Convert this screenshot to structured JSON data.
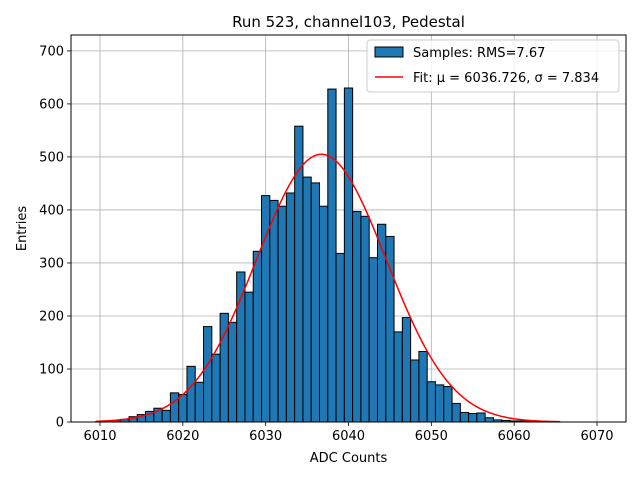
{
  "chart_data": {
    "type": "bar",
    "title": "Run 523, channel103, Pedestal",
    "xlabel": "ADC Counts",
    "ylabel": "Entries",
    "xlim": [
      6006.5,
      6073.5
    ],
    "ylim": [
      0,
      730
    ],
    "xticks": [
      6010,
      6020,
      6030,
      6040,
      6050,
      6060,
      6070
    ],
    "yticks": [
      0,
      100,
      200,
      300,
      400,
      500,
      600,
      700
    ],
    "grid": true,
    "legend_position": "top-right",
    "bin_width": 1,
    "series": [
      {
        "name": "Samples: RMS=7.67",
        "kind": "histogram",
        "color": "#1f77b4",
        "edgecolor": "#000000",
        "bin_centers": [
          6010,
          6011,
          6012,
          6013,
          6014,
          6015,
          6016,
          6017,
          6018,
          6019,
          6020,
          6021,
          6022,
          6023,
          6024,
          6025,
          6026,
          6027,
          6028,
          6029,
          6030,
          6031,
          6032,
          6033,
          6034,
          6035,
          6036,
          6037,
          6038,
          6039,
          6040,
          6041,
          6042,
          6043,
          6044,
          6045,
          6046,
          6047,
          6048,
          6049,
          6050,
          6051,
          6052,
          6053,
          6054,
          6055,
          6056,
          6057,
          6058,
          6059,
          6060,
          6061,
          6062,
          6063,
          6064,
          6065
        ],
        "values": [
          1,
          2,
          3,
          5,
          10,
          14,
          20,
          26,
          22,
          55,
          52,
          105,
          75,
          180,
          128,
          205,
          188,
          283,
          245,
          322,
          427,
          418,
          407,
          432,
          558,
          462,
          451,
          407,
          628,
          318,
          630,
          397,
          388,
          310,
          373,
          350,
          170,
          197,
          117,
          133,
          76,
          70,
          67,
          35,
          18,
          16,
          17,
          8,
          4,
          3,
          2,
          2,
          1,
          1,
          1,
          1
        ]
      },
      {
        "name": "Fit: μ = 6036.726, σ = 7.834",
        "kind": "gaussian",
        "color": "#ff0000",
        "mu": 6036.726,
        "sigma": 7.834,
        "amplitude": 505,
        "x_range": [
          6009.5,
          6065.5
        ]
      }
    ]
  }
}
